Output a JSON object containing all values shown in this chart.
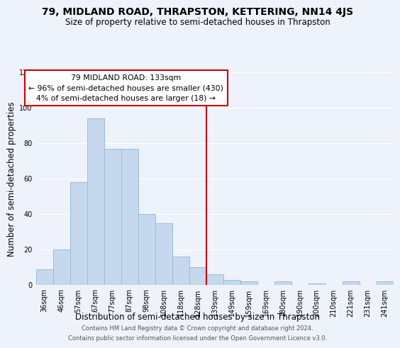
{
  "title": "79, MIDLAND ROAD, THRAPSTON, KETTERING, NN14 4JS",
  "subtitle": "Size of property relative to semi-detached houses in Thrapston",
  "xlabel": "Distribution of semi-detached houses by size in Thrapston",
  "ylabel": "Number of semi-detached properties",
  "categories": [
    "36sqm",
    "46sqm",
    "57sqm",
    "67sqm",
    "77sqm",
    "87sqm",
    "98sqm",
    "108sqm",
    "118sqm",
    "128sqm",
    "139sqm",
    "149sqm",
    "159sqm",
    "169sqm",
    "180sqm",
    "190sqm",
    "200sqm",
    "210sqm",
    "221sqm",
    "231sqm",
    "241sqm"
  ],
  "values": [
    9,
    20,
    58,
    94,
    77,
    77,
    40,
    35,
    16,
    10,
    6,
    3,
    2,
    0,
    2,
    0,
    1,
    0,
    2,
    0,
    2
  ],
  "bar_color": "#c5d8ed",
  "bar_edge_color": "#9bbdd6",
  "vline_x": 10.0,
  "vline_color": "#cc0000",
  "annotation_title": "79 MIDLAND ROAD: 133sqm",
  "annotation_line1": "← 96% of semi-detached houses are smaller (430)",
  "annotation_line2": "4% of semi-detached houses are larger (18) →",
  "annotation_box_color": "#ffffff",
  "annotation_box_edge": "#cc0000",
  "ylim": [
    0,
    120
  ],
  "yticks": [
    0,
    20,
    40,
    60,
    80,
    100,
    120
  ],
  "footer_line1": "Contains HM Land Registry data © Crown copyright and database right 2024.",
  "footer_line2": "Contains public sector information licensed under the Open Government Licence v3.0.",
  "bg_color": "#eef2fb",
  "grid_color": "#ffffff",
  "title_fontsize": 10,
  "subtitle_fontsize": 8.5,
  "axis_label_fontsize": 8.5,
  "tick_fontsize": 7,
  "annotation_fontsize": 7.8,
  "footer_fontsize": 6
}
